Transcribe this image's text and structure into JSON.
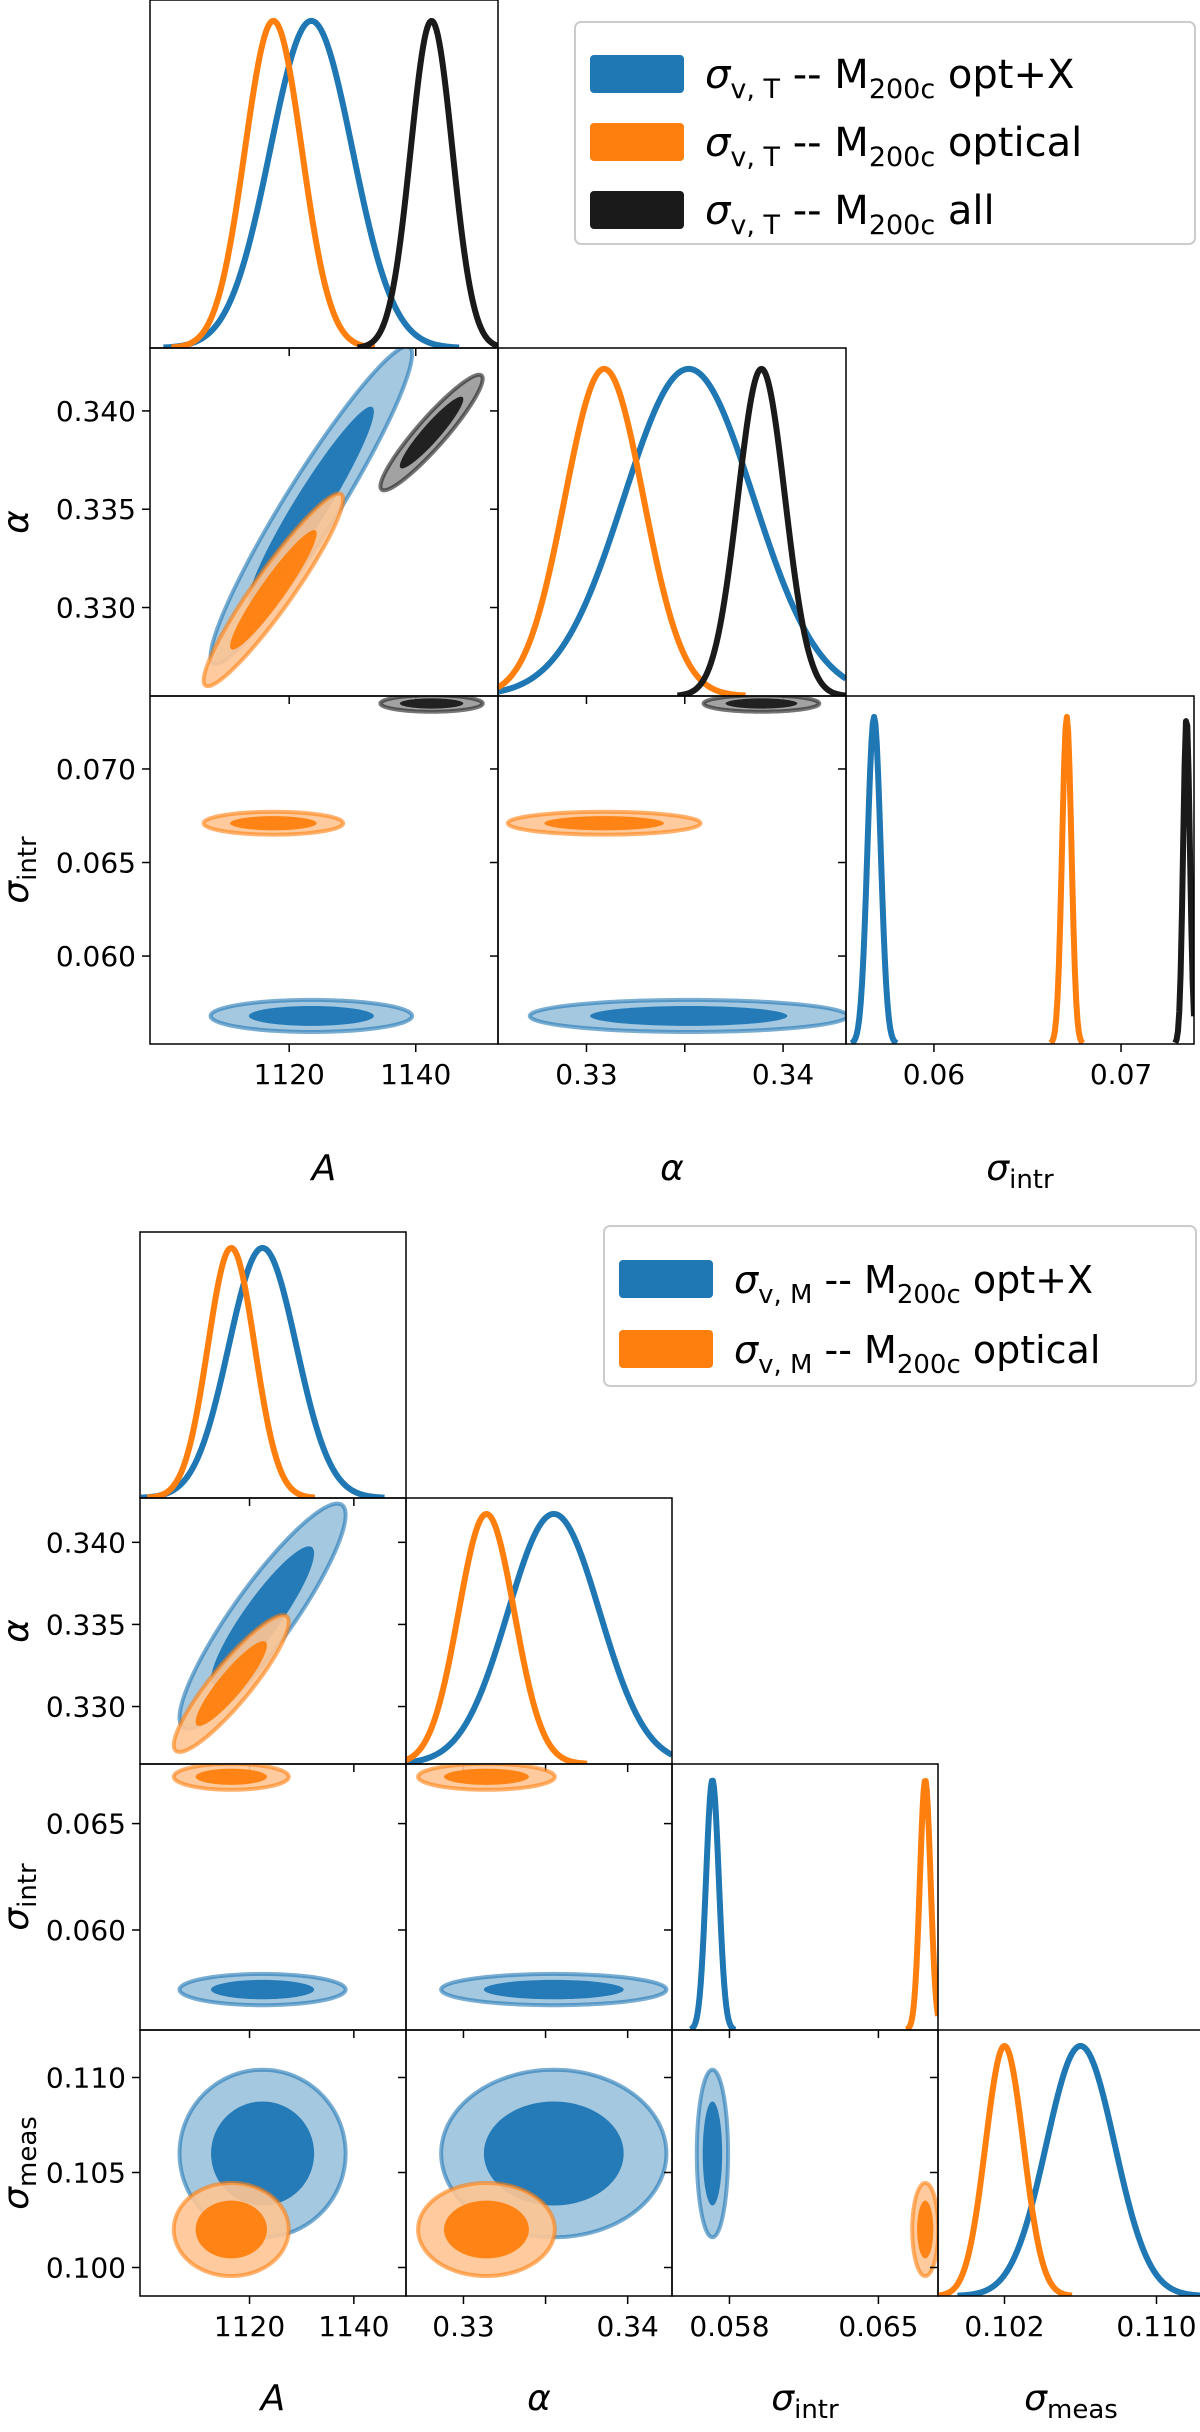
{
  "colors": {
    "opt_x": "#1f77b4",
    "optical": "#ff7f0e",
    "all": "#1a1a1a"
  },
  "chart_data": [
    {
      "type": "corner",
      "parameters": [
        {
          "key": "A",
          "label": "A",
          "range": [
            1098,
            1153
          ],
          "ticks": [
            1120,
            1140
          ],
          "tick_labels": [
            "1120",
            "1140"
          ]
        },
        {
          "key": "alpha",
          "label": "α",
          "range": [
            0.3255,
            0.3432
          ],
          "ticks": [
            0.33,
            0.335,
            0.34
          ],
          "tick_labels": [
            "0.330",
            "0.335",
            "0.340"
          ],
          "x_tick_labels": [
            "0.33",
            "",
            "0.34"
          ]
        },
        {
          "key": "sigma_intr",
          "label": "σ",
          "label_sub": "intr",
          "range": [
            0.0553,
            0.0739
          ],
          "ticks": [
            0.06,
            0.065,
            0.07
          ],
          "tick_labels": [
            "0.060",
            "0.065",
            "0.070"
          ],
          "x_ticks": [
            0.06,
            0.07
          ],
          "x_tick_labels": [
            "0.06",
            "0.07"
          ]
        }
      ],
      "legend": {
        "placement": "top-right",
        "entries": [
          {
            "prefix": "σ",
            "sub": "v, T",
            "mid": " -- M",
            "sub2": "200c",
            "suffix": " opt+X",
            "series": "opt_x"
          },
          {
            "prefix": "σ",
            "sub": "v, T",
            "mid": " -- M",
            "sub2": "200c",
            "suffix": " optical",
            "series": "optical"
          },
          {
            "prefix": "σ",
            "sub": "v, T",
            "mid": " -- M",
            "sub2": "200c",
            "suffix": " all",
            "series": "all"
          }
        ]
      },
      "series": [
        {
          "name": "σv,T -- M200c opt+X",
          "color_key": "opt_x",
          "mean": [
            1123.5,
            0.3352,
            0.0568
          ],
          "sigma": [
            6.5,
            0.0033,
            0.00035
          ],
          "corr": [
            [
              1,
              0.95,
              0
            ],
            [
              0.95,
              1,
              0
            ],
            [
              0,
              0,
              1
            ]
          ]
        },
        {
          "name": "σv,T -- M200c optical",
          "color_key": "optical",
          "mean": [
            1117.5,
            0.3309,
            0.0671
          ],
          "sigma": [
            4.5,
            0.002,
            0.00025
          ],
          "corr": [
            [
              1,
              0.94,
              0
            ],
            [
              0.94,
              1,
              0
            ],
            [
              0,
              0,
              1
            ]
          ]
        },
        {
          "name": "σv,T -- M200c all",
          "color_key": "all",
          "mean": [
            1142.5,
            0.3389,
            0.0735
          ],
          "sigma": [
            3.3,
            0.0012,
            0.00018
          ],
          "corr": [
            [
              1,
              0.93,
              0
            ],
            [
              0.93,
              1,
              0
            ],
            [
              0,
              0,
              1
            ]
          ]
        }
      ]
    },
    {
      "type": "corner",
      "parameters": [
        {
          "key": "A",
          "label": "A",
          "range": [
            1099,
            1150
          ],
          "ticks": [
            1120,
            1140
          ],
          "tick_labels": [
            "1120",
            "1140"
          ]
        },
        {
          "key": "alpha",
          "label": "α",
          "range": [
            0.3265,
            0.3427
          ],
          "ticks": [
            0.33,
            0.335,
            0.34
          ],
          "tick_labels": [
            "0.330",
            "0.335",
            "0.340"
          ],
          "x_tick_labels": [
            "0.33",
            "",
            "0.34"
          ]
        },
        {
          "key": "sigma_intr",
          "label": "σ",
          "label_sub": "intr",
          "range": [
            0.0553,
            0.0678
          ],
          "ticks": [
            0.06,
            0.065
          ],
          "tick_labels": [
            "0.060",
            "0.065"
          ],
          "x_ticks": [
            0.058,
            0.065
          ],
          "x_tick_labels": [
            "0.058",
            "0.065"
          ]
        },
        {
          "key": "sigma_meas",
          "label": "σ",
          "label_sub": "meas",
          "range": [
            0.0985,
            0.1125
          ],
          "ticks": [
            0.1,
            0.105,
            0.11
          ],
          "tick_labels": [
            "0.100",
            "0.105",
            "0.110"
          ],
          "x_ticks": [
            0.102,
            0.11
          ],
          "x_tick_labels": [
            "0.102",
            "0.110"
          ]
        }
      ],
      "legend": {
        "placement": "top-right",
        "entries": [
          {
            "prefix": "σ",
            "sub": "v, M",
            "mid": " -- M",
            "sub2": "200c",
            "suffix": " opt+X",
            "series": "opt_x"
          },
          {
            "prefix": "σ",
            "sub": "v, M",
            "mid": " -- M",
            "sub2": "200c",
            "suffix": " optical",
            "series": "optical"
          }
        ]
      },
      "series": [
        {
          "name": "σv,M -- M200c opt+X",
          "color_key": "opt_x",
          "mean": [
            1122.5,
            0.3355,
            0.0572,
            0.106
          ],
          "sigma": [
            6.5,
            0.0028,
            0.0003,
            0.0018
          ],
          "corr": [
            [
              1,
              0.9,
              0,
              0
            ],
            [
              0.9,
              1,
              0,
              0
            ],
            [
              0,
              0,
              1,
              0
            ],
            [
              0,
              0,
              0,
              1
            ]
          ]
        },
        {
          "name": "σv,M -- M200c optical",
          "color_key": "optical",
          "mean": [
            1116.5,
            0.3314,
            0.0672,
            0.102
          ],
          "sigma": [
            4.5,
            0.0017,
            0.00025,
            0.001
          ],
          "corr": [
            [
              1,
              0.9,
              0,
              0
            ],
            [
              0.9,
              1,
              0,
              0
            ],
            [
              0,
              0,
              1,
              0
            ],
            [
              0,
              0,
              0,
              1
            ]
          ]
        }
      ]
    }
  ]
}
